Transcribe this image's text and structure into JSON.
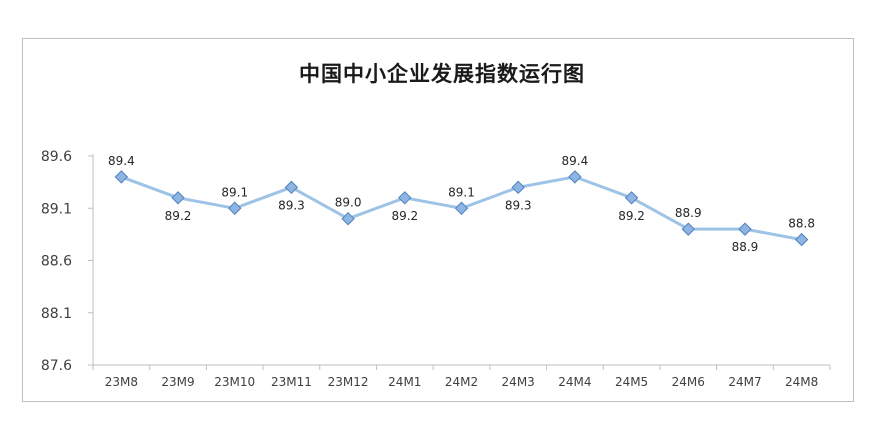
{
  "chart_data": {
    "type": "line",
    "title": "中国中小企业发展指数运行图",
    "xlabel": "",
    "ylabel": "",
    "categories": [
      "23M8",
      "23M9",
      "23M10",
      "23M11",
      "23M12",
      "24M1",
      "24M2",
      "24M3",
      "24M4",
      "24M5",
      "24M6",
      "24M7",
      "24M8"
    ],
    "series": [
      {
        "values": [
          89.4,
          89.2,
          89.1,
          89.3,
          89.0,
          89.2,
          89.1,
          89.3,
          89.4,
          89.2,
          88.9,
          88.9,
          88.8
        ]
      }
    ],
    "data_labels": [
      "89.4",
      "89.2",
      "89.1",
      "89.3",
      "89.0",
      "89.2",
      "89.1",
      "89.3",
      "89.4",
      "89.2",
      "88.9",
      "88.9",
      "88.8"
    ],
    "ylim": [
      87.6,
      89.6
    ],
    "yticks": [
      "87.6",
      "88.1",
      "88.6",
      "89.1",
      "89.6"
    ],
    "grid": false,
    "legend": "none",
    "line_color": "#9dc3e6",
    "marker_fill": "#8eb4e3",
    "marker_stroke": "#4f81bd"
  }
}
